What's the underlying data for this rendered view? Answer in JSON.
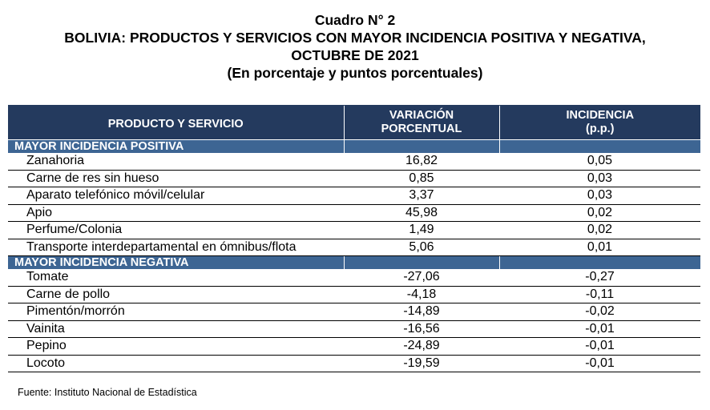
{
  "title": {
    "line1": "Cuadro N° 2",
    "line2": "BOLIVIA: PRODUCTOS Y SERVICIOS CON MAYOR INCIDENCIA POSITIVA Y NEGATIVA,",
    "line3": "OCTUBRE DE 2021",
    "line4": "(En porcentaje y puntos porcentuales)"
  },
  "table": {
    "headers": {
      "product": "PRODUCTO Y SERVICIO",
      "variation_line1": "VARIACIÓN",
      "variation_line2": "PORCENTUAL",
      "incidence_line1": "INCIDENCIA",
      "incidence_line2": "(p.p.)"
    },
    "sections": [
      {
        "label": "MAYOR INCIDENCIA POSITIVA",
        "rows": [
          {
            "name": "Zanahoria",
            "variation": "16,82",
            "incidence": "0,05"
          },
          {
            "name": "Carne de res sin hueso",
            "variation": "0,85",
            "incidence": "0,03"
          },
          {
            "name": "Aparato telefónico móvil/celular",
            "variation": "3,37",
            "incidence": "0,03"
          },
          {
            "name": "Apio",
            "variation": "45,98",
            "incidence": "0,02"
          },
          {
            "name": "Perfume/Colonia",
            "variation": "1,49",
            "incidence": "0,02"
          },
          {
            "name": "Transporte interdepartamental en ómnibus/flota",
            "variation": "5,06",
            "incidence": "0,01"
          }
        ]
      },
      {
        "label": "MAYOR INCIDENCIA NEGATIVA",
        "rows": [
          {
            "name": "Tomate",
            "variation": "-27,06",
            "incidence": "-0,27"
          },
          {
            "name": "Carne de pollo",
            "variation": "-4,18",
            "incidence": "-0,11"
          },
          {
            "name": "Pimentón/morrón",
            "variation": "-14,89",
            "incidence": "-0,02"
          },
          {
            "name": "Vainita",
            "variation": "-16,56",
            "incidence": "-0,01"
          },
          {
            "name": "Pepino",
            "variation": "-24,89",
            "incidence": "-0,01"
          },
          {
            "name": "Locoto",
            "variation": "-19,59",
            "incidence": "-0,01"
          }
        ]
      }
    ]
  },
  "source": "Fuente: Instituto Nacional de Estadística",
  "colors": {
    "header_bg": "#243a5e",
    "section_bg": "#3d6593",
    "header_text": "#ffffff"
  }
}
